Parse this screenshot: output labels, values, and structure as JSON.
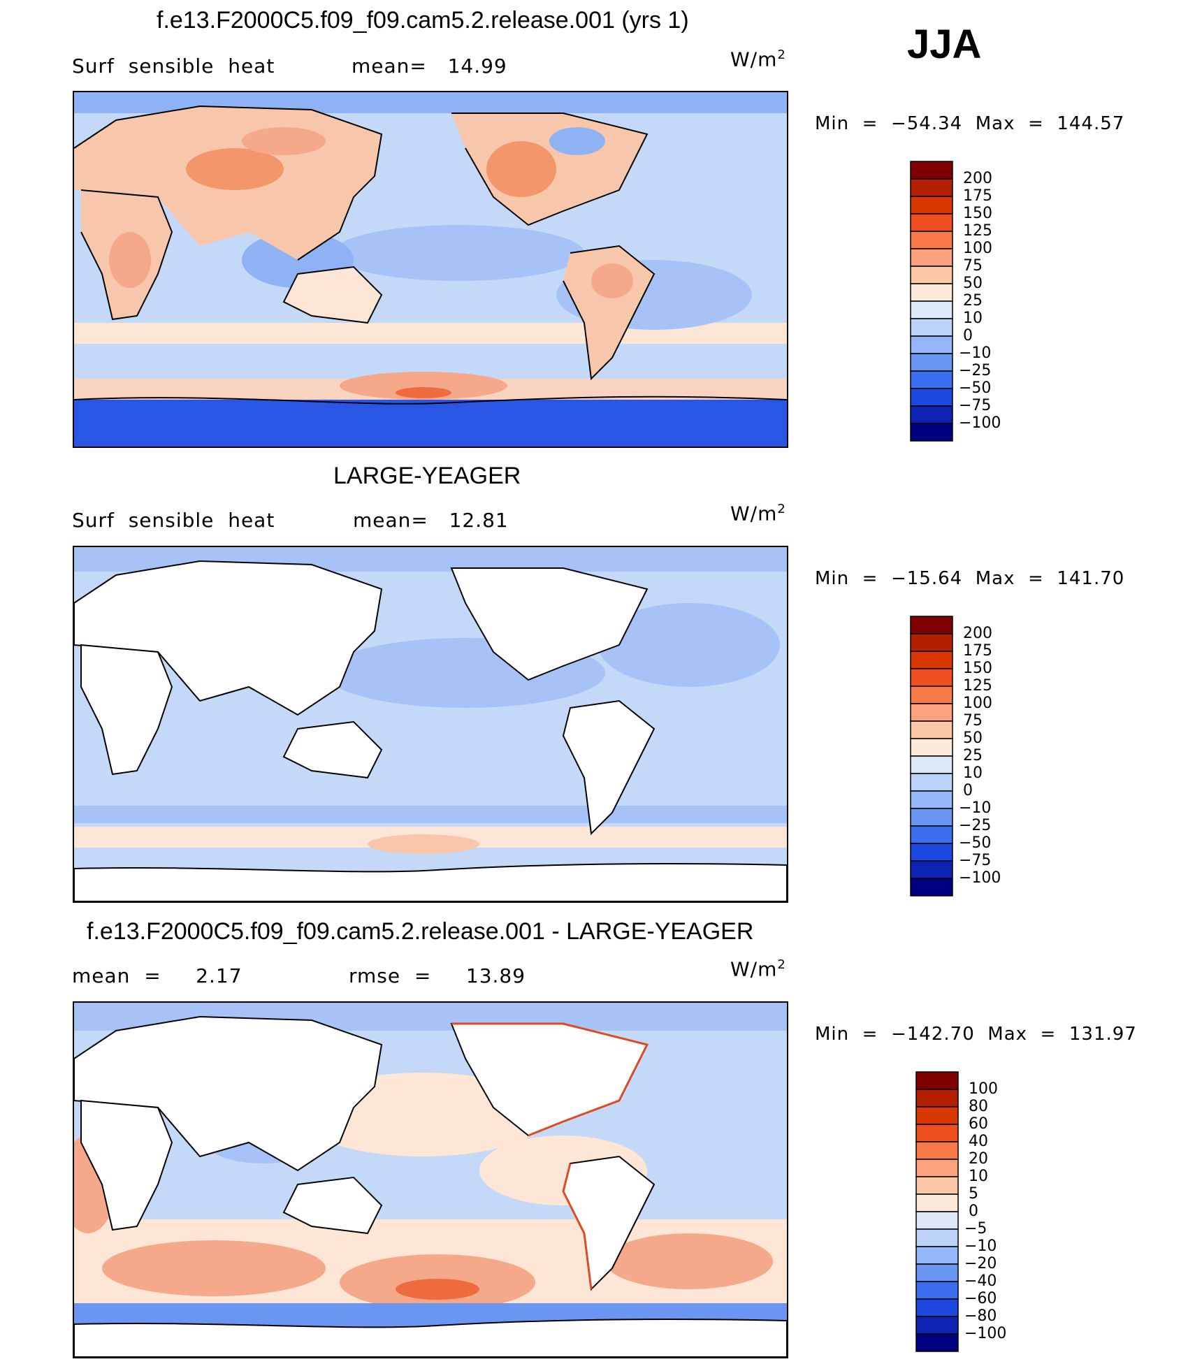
{
  "season": "JJA",
  "units_text": "W/m",
  "units_sup": "2",
  "panels": [
    {
      "title": "f.e13.F2000C5.f09_f09.cam5.2.release.001 (yrs 1)",
      "left_text": "Surf  sensible  heat",
      "mid_text": "mean=   14.99",
      "minmax": "Min  =  −54.34  Max  =  144.57"
    },
    {
      "title": "LARGE-YEAGER",
      "left_text": "Surf  sensible  heat",
      "mid_text": "mean=   12.81",
      "minmax": "Min  =  −15.64  Max  =  141.70"
    },
    {
      "title": "f.e13.F2000C5.f09_f09.cam5.2.release.001 - LARGE-YEAGER",
      "left_text": "mean  =     2.17",
      "mid_text": "rmse  =     13.89",
      "minmax": "Min  =  −142.70  Max  =  131.97"
    }
  ],
  "colorbars": [
    {
      "levels": [
        "200",
        "175",
        "150",
        "125",
        "100",
        "75",
        "50",
        "25",
        "10",
        "0",
        "−10",
        "−25",
        "−50",
        "−75",
        "−100"
      ],
      "colors": [
        "#800000",
        "#b22000",
        "#d93800",
        "#f05020",
        "#f87a48",
        "#fba27c",
        "#fcc8a8",
        "#fde9da",
        "#dce8f8",
        "#bcd2f8",
        "#94b6f6",
        "#6a96f2",
        "#3c6ef0",
        "#1c48e0",
        "#0c22b0",
        "#000080"
      ]
    },
    {
      "levels": [
        "200",
        "175",
        "150",
        "125",
        "100",
        "75",
        "50",
        "25",
        "10",
        "0",
        "−10",
        "−25",
        "−50",
        "−75",
        "−100"
      ],
      "colors": [
        "#800000",
        "#b22000",
        "#d93800",
        "#f05020",
        "#f87a48",
        "#fba27c",
        "#fcc8a8",
        "#fde9da",
        "#dce8f8",
        "#bcd2f8",
        "#94b6f6",
        "#6a96f2",
        "#3c6ef0",
        "#1c48e0",
        "#0c22b0",
        "#000080"
      ]
    },
    {
      "levels": [
        "100",
        "80",
        "60",
        "40",
        "20",
        "10",
        "5",
        "0",
        "−5",
        "−10",
        "−20",
        "−40",
        "−60",
        "−80",
        "−100"
      ],
      "colors": [
        "#800000",
        "#b22000",
        "#d93800",
        "#f05020",
        "#f87a48",
        "#fba27c",
        "#fcc8a8",
        "#fde9da",
        "#dce8f8",
        "#bcd2f8",
        "#94b6f6",
        "#6a96f2",
        "#3c6ef0",
        "#1c48e0",
        "#0c22b0",
        "#000080"
      ]
    }
  ],
  "chart_data": [
    {
      "type": "heatmap",
      "title": "f.e13.F2000C5.f09_f09.cam5.2.release.001 (yrs 1)",
      "variable": "Surf  sensible  heat",
      "units": "W/m2",
      "season": "JJA",
      "mean": 14.99,
      "min": -54.34,
      "max": 144.57,
      "contour_levels": [
        -100,
        -75,
        -50,
        -25,
        -10,
        0,
        10,
        25,
        50,
        75,
        100,
        125,
        150,
        175,
        200
      ]
    },
    {
      "type": "heatmap",
      "title": "LARGE-YEAGER",
      "variable": "Surf  sensible  heat",
      "units": "W/m2",
      "mean": 12.81,
      "min": -15.64,
      "max": 141.7,
      "contour_levels": [
        -100,
        -75,
        -50,
        -25,
        -10,
        0,
        10,
        25,
        50,
        75,
        100,
        125,
        150,
        175,
        200
      ]
    },
    {
      "type": "heatmap",
      "title": "f.e13.F2000C5.f09_f09.cam5.2.release.001 - LARGE-YEAGER",
      "units": "W/m2",
      "mean": 2.17,
      "rmse": 13.89,
      "min": -142.7,
      "max": 131.97,
      "contour_levels": [
        -100,
        -80,
        -60,
        -40,
        -20,
        -10,
        -5,
        0,
        5,
        10,
        20,
        40,
        60,
        80,
        100
      ]
    }
  ]
}
